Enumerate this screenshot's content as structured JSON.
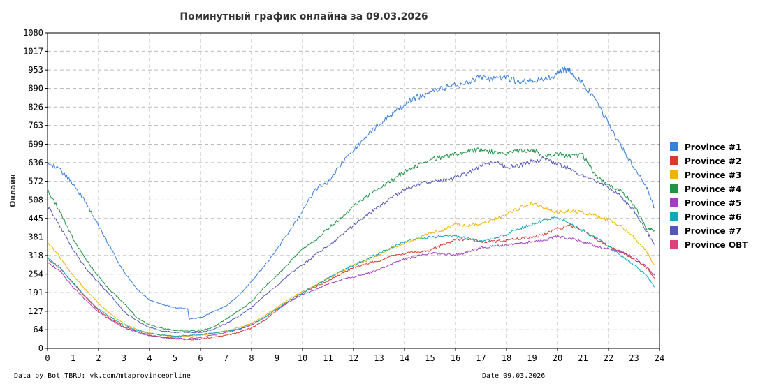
{
  "chart_data": {
    "type": "line",
    "title": "Поминутный график онлайна за 09.03.2026",
    "ylabel": "Онлайн",
    "xlabel": "",
    "xlim": [
      0,
      24
    ],
    "ylim": [
      0,
      1080
    ],
    "x_ticks": [
      "0",
      "1",
      "2",
      "3",
      "4",
      "5",
      "6",
      "7",
      "8",
      "9",
      "10",
      "11",
      "12",
      "13",
      "14",
      "15",
      "16",
      "17",
      "18",
      "19",
      "20",
      "21",
      "22",
      "23",
      "24"
    ],
    "y_ticks": [
      "0",
      "64",
      "127",
      "191",
      "254",
      "318",
      "381",
      "445",
      "508",
      "572",
      "636",
      "699",
      "763",
      "826",
      "890",
      "953",
      "1017",
      "1080"
    ],
    "grid": true,
    "legend_position": "right",
    "series": [
      {
        "name": "Province #1",
        "color": "#3a7fdb",
        "x": [
          0,
          0.5,
          1,
          1.5,
          2,
          2.5,
          3,
          3.5,
          4,
          4.5,
          5,
          5.5,
          5.55,
          6,
          6.5,
          7,
          7.5,
          8,
          8.5,
          9,
          9.5,
          10,
          10.5,
          11,
          11.5,
          12,
          12.5,
          13,
          13.5,
          14,
          14.5,
          15,
          15.5,
          16,
          16.5,
          17,
          17.5,
          18,
          18.5,
          19,
          19.5,
          20,
          20.3,
          20.5,
          21,
          21.5,
          22,
          22.5,
          23,
          23.5,
          23.8
        ],
        "y": [
          640,
          610,
          565,
          500,
          420,
          340,
          260,
          205,
          165,
          150,
          140,
          135,
          100,
          105,
          125,
          145,
          180,
          230,
          280,
          340,
          400,
          470,
          545,
          570,
          630,
          680,
          720,
          770,
          800,
          835,
          860,
          875,
          890,
          900,
          910,
          930,
          920,
          925,
          910,
          915,
          920,
          940,
          955,
          950,
          905,
          845,
          770,
          690,
          620,
          550,
          480
        ]
      },
      {
        "name": "Province #2",
        "color": "#d83b2b",
        "x": [
          0,
          0.5,
          1,
          1.5,
          2,
          2.5,
          3,
          3.5,
          4,
          4.5,
          5,
          5.5,
          6,
          6.5,
          7,
          7.5,
          8,
          8.5,
          9,
          9.5,
          10,
          10.5,
          11,
          11.5,
          12,
          12.5,
          13,
          13.5,
          14,
          14.5,
          15,
          15.5,
          16,
          16.5,
          17,
          17.5,
          18,
          18.5,
          19,
          19.5,
          20,
          20.5,
          21,
          21.5,
          22,
          22.5,
          23,
          23.5,
          23.8
        ],
        "y": [
          305,
          275,
          225,
          175,
          130,
          100,
          75,
          58,
          45,
          38,
          33,
          30,
          32,
          38,
          45,
          55,
          70,
          95,
          130,
          165,
          190,
          210,
          230,
          255,
          275,
          290,
          300,
          315,
          325,
          330,
          335,
          355,
          370,
          375,
          365,
          365,
          370,
          375,
          380,
          390,
          410,
          420,
          405,
          375,
          350,
          330,
          305,
          275,
          240
        ]
      },
      {
        "name": "Province #3",
        "color": "#f0b400",
        "x": [
          0,
          0.5,
          1,
          1.5,
          2,
          2.5,
          3,
          3.5,
          4,
          4.5,
          5,
          5.5,
          6,
          6.5,
          7,
          7.5,
          8,
          8.5,
          9,
          9.5,
          10,
          10.5,
          11,
          11.5,
          12,
          12.5,
          13,
          13.5,
          14,
          14.5,
          15,
          15.5,
          16,
          16.5,
          17,
          17.5,
          18,
          18.5,
          19,
          19.5,
          20,
          20.5,
          21,
          21.5,
          22,
          22.5,
          23,
          23.5,
          23.8
        ],
        "y": [
          365,
          310,
          250,
          200,
          155,
          115,
          85,
          65,
          52,
          45,
          42,
          42,
          45,
          50,
          60,
          72,
          85,
          110,
          140,
          170,
          195,
          215,
          240,
          260,
          285,
          300,
          320,
          345,
          360,
          375,
          395,
          405,
          425,
          420,
          425,
          440,
          460,
          480,
          495,
          480,
          465,
          470,
          465,
          455,
          440,
          420,
          380,
          330,
          285
        ]
      },
      {
        "name": "Province #4",
        "color": "#1f9446",
        "x": [
          0,
          0.5,
          1,
          1.5,
          2,
          2.5,
          3,
          3.5,
          4,
          4.5,
          5,
          5.5,
          6,
          6.5,
          7,
          7.5,
          8,
          8.5,
          9,
          9.5,
          10,
          10.5,
          11,
          11.5,
          12,
          12.5,
          13,
          13.5,
          14,
          14.5,
          15,
          15.5,
          16,
          16.5,
          17,
          17.5,
          18,
          18.5,
          19,
          19.5,
          20,
          20.5,
          21,
          21.5,
          22,
          22.5,
          23,
          23.5,
          23.8
        ],
        "y": [
          545,
          465,
          375,
          305,
          245,
          195,
          155,
          105,
          80,
          68,
          62,
          60,
          60,
          72,
          100,
          130,
          160,
          210,
          250,
          295,
          340,
          370,
          410,
          445,
          485,
          520,
          545,
          575,
          605,
          625,
          645,
          655,
          665,
          675,
          680,
          670,
          665,
          675,
          680,
          660,
          665,
          660,
          660,
          590,
          560,
          540,
          490,
          410,
          405
        ]
      },
      {
        "name": "Province #5",
        "color": "#a040c0",
        "x": [
          0,
          0.5,
          1,
          1.5,
          2,
          2.5,
          3,
          3.5,
          4,
          4.5,
          5,
          5.5,
          6,
          6.5,
          7,
          7.5,
          8,
          8.5,
          9,
          9.5,
          10,
          10.5,
          11,
          11.5,
          12,
          12.5,
          13,
          13.5,
          14,
          14.5,
          15,
          15.5,
          16,
          16.5,
          17,
          17.5,
          18,
          18.5,
          19,
          19.5,
          20,
          20.5,
          21,
          21.5,
          22,
          22.5,
          23,
          23.5,
          23.8
        ],
        "y": [
          295,
          265,
          210,
          165,
          125,
          95,
          72,
          55,
          44,
          38,
          35,
          33,
          38,
          45,
          55,
          65,
          80,
          105,
          135,
          160,
          185,
          200,
          220,
          235,
          245,
          255,
          270,
          290,
          305,
          315,
          325,
          325,
          320,
          330,
          345,
          350,
          355,
          360,
          365,
          370,
          385,
          375,
          365,
          350,
          340,
          330,
          310,
          280,
          250
        ]
      },
      {
        "name": "Province #6",
        "color": "#12a8bc",
        "x": [
          0,
          0.5,
          1,
          1.5,
          2,
          2.5,
          3,
          3.5,
          4,
          4.5,
          5,
          5.5,
          6,
          6.5,
          7,
          7.5,
          8,
          8.5,
          9,
          9.5,
          10,
          10.5,
          11,
          11.5,
          12,
          12.5,
          13,
          13.5,
          14,
          14.5,
          15,
          15.5,
          16,
          16.5,
          17,
          17.5,
          18,
          18.5,
          19,
          19.5,
          20,
          20.5,
          21,
          21.5,
          22,
          22.5,
          23,
          23.5,
          23.8
        ],
        "y": [
          310,
          275,
          225,
          175,
          135,
          105,
          80,
          62,
          52,
          45,
          42,
          45,
          48,
          52,
          58,
          68,
          82,
          105,
          135,
          165,
          190,
          215,
          240,
          265,
          285,
          305,
          325,
          345,
          365,
          375,
          380,
          385,
          385,
          375,
          365,
          375,
          390,
          410,
          425,
          440,
          450,
          430,
          400,
          380,
          350,
          315,
          285,
          250,
          210
        ]
      },
      {
        "name": "Province #7",
        "color": "#5456b8",
        "x": [
          0,
          0.5,
          1,
          1.5,
          2,
          2.5,
          3,
          3.5,
          4,
          4.5,
          5,
          5.5,
          6,
          6.5,
          7,
          7.5,
          8,
          8.5,
          9,
          9.5,
          10,
          10.5,
          11,
          11.5,
          12,
          12.5,
          13,
          13.5,
          14,
          14.5,
          15,
          15.5,
          16,
          16.5,
          17,
          17.5,
          18,
          18.5,
          19,
          19.5,
          20,
          20.5,
          21,
          21.5,
          22,
          22.5,
          23,
          23.5,
          23.8
        ],
        "y": [
          490,
          415,
          340,
          275,
          225,
          180,
          125,
          95,
          72,
          60,
          55,
          55,
          55,
          65,
          85,
          110,
          140,
          180,
          215,
          255,
          285,
          320,
          350,
          385,
          420,
          455,
          485,
          515,
          545,
          560,
          570,
          575,
          585,
          600,
          625,
          640,
          620,
          625,
          640,
          650,
          630,
          615,
          590,
          570,
          550,
          520,
          470,
          400,
          355
        ]
      },
      {
        "name": "Province OBT",
        "color": "#e0407a",
        "x": [],
        "y": []
      }
    ]
  },
  "footer": {
    "source": "Data by Bot TBRU: vk.com/mtaprovinceonline",
    "date": "Date 09.03.2026"
  }
}
